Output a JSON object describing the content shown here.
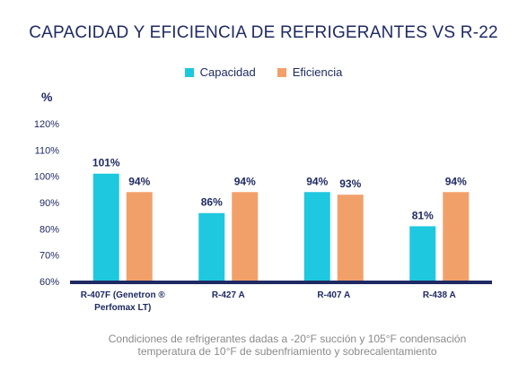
{
  "chart_data": {
    "type": "bar",
    "title": "CAPACIDAD Y EFICIENCIA DE REFRIGERANTES VS R-22",
    "ylabel": "%",
    "xlabel": "",
    "ylim": [
      60,
      120
    ],
    "yticks": [
      60,
      70,
      80,
      90,
      100,
      110,
      120
    ],
    "ytick_labels": [
      "60%",
      "70%",
      "80%",
      "90%",
      "100%",
      "110%",
      "120%"
    ],
    "grid": false,
    "legend_position": "top-center",
    "categories": [
      [
        "R-407F (Genetron ®",
        "Perfomax LT)"
      ],
      [
        "R-427 A"
      ],
      [
        "R-407 A"
      ],
      [
        "R-438 A"
      ]
    ],
    "series": [
      {
        "name": "Capacidad",
        "color": "#1ec8df",
        "values": [
          101,
          86,
          94,
          81
        ],
        "labels": [
          "101%",
          "86%",
          "94%",
          "81%"
        ]
      },
      {
        "name": "Eficiencia",
        "color": "#f2a06a",
        "values": [
          94,
          94,
          93,
          94
        ],
        "labels": [
          "94%",
          "94%",
          "93%",
          "94%"
        ]
      }
    ]
  },
  "footnote": {
    "line1": "Condiciones de refrigerantes dadas a -20°F succión y 105°F condensación",
    "line2": "temperatura de 10°F de subenfriamiento y sobrecalentamiento"
  },
  "colors": {
    "title": "#1f2a63",
    "axis": "#1f2a63",
    "footnote": "#8a8a8a"
  }
}
